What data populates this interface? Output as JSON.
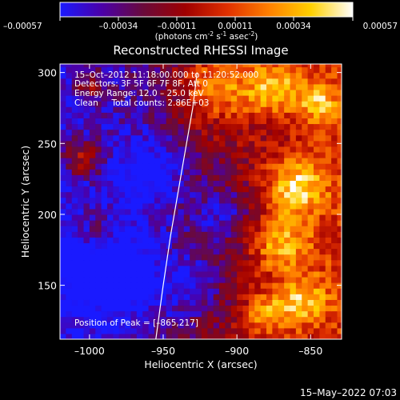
{
  "colorbar": {
    "ticks": [
      "-0.00057",
      "-0.00034",
      "-0.00011",
      "0.00011",
      "0.00034",
      "0.00057"
    ],
    "units_label": "(photons cm",
    "units_sup1": "-2",
    "units_mid": " s",
    "units_sup2": "-1",
    "units_mid2": " asec",
    "units_sup3": "-2",
    "units_end": ")",
    "stops": [
      "#1a1aff",
      "#4b00a8",
      "#6a0a3a",
      "#a00000",
      "#e03000",
      "#ff8000",
      "#ffd000",
      "#ffffff"
    ]
  },
  "title": "Reconstructed RHESSI Image",
  "annotations": {
    "time_line": "15–Oct–2012 11:18:00.000 to 11:20:52.000",
    "detectors_line": "Detectors: 3F 5F 6F 7F 8F, Att 0",
    "energy_line": "Energy Range: 12.0 – 25.0 keV",
    "clean_line": "Clean     Total counts: 2.86E+03",
    "peak_line": "Position of Peak = [–865,217]"
  },
  "footer_date": "15–May–2022 07:03",
  "chart_data": {
    "type": "heatmap",
    "title": "Reconstructed RHESSI Image",
    "xlabel": "Heliocentric X (arcsec)",
    "ylabel": "Heliocentric Y (arcsec)",
    "xlim": [
      -1020,
      -829
    ],
    "ylim": [
      112,
      306
    ],
    "x_ticks": [
      -1000,
      -950,
      -900,
      -850
    ],
    "x_tick_labels": [
      "–1000",
      "–950",
      "–900",
      "–850"
    ],
    "y_ticks": [
      150,
      200,
      250,
      300
    ],
    "y_tick_labels": [
      "150",
      "200",
      "250",
      "300"
    ],
    "value_range": [
      -0.00057,
      0.00057
    ],
    "peak_position": [
      -865,
      217
    ],
    "limb_curve": {
      "x": [
        -955,
        -950,
        -945,
        -940,
        -935,
        -930,
        -927
      ],
      "y": [
        112,
        150,
        185,
        215,
        245,
        275,
        300
      ]
    },
    "pixel_size_arcsec": 4,
    "bright_regions": [
      {
        "x": -860,
        "y": 220,
        "level": 1.0,
        "spread": 14
      },
      {
        "x": -870,
        "y": 180,
        "level": 0.85,
        "spread": 14
      },
      {
        "x": -855,
        "y": 140,
        "level": 0.8,
        "spread": 12
      },
      {
        "x": -880,
        "y": 130,
        "level": 0.7,
        "spread": 12
      },
      {
        "x": -915,
        "y": 290,
        "level": 0.9,
        "spread": 18
      },
      {
        "x": -875,
        "y": 290,
        "level": 0.85,
        "spread": 14
      },
      {
        "x": -845,
        "y": 280,
        "level": 0.75,
        "spread": 10
      },
      {
        "x": -1005,
        "y": 240,
        "level": 0.8,
        "spread": 10
      },
      {
        "x": -995,
        "y": 190,
        "level": 0.5,
        "spread": 10
      },
      {
        "x": -1000,
        "y": 290,
        "level": 0.6,
        "spread": 8
      }
    ],
    "dark_regions": [
      {
        "x": -980,
        "y": 160,
        "level": -0.8,
        "spread": 25
      },
      {
        "x": -960,
        "y": 230,
        "level": -0.7,
        "spread": 18
      },
      {
        "x": -910,
        "y": 200,
        "level": -0.6,
        "spread": 14
      },
      {
        "x": -930,
        "y": 150,
        "level": -0.5,
        "spread": 14
      }
    ]
  }
}
